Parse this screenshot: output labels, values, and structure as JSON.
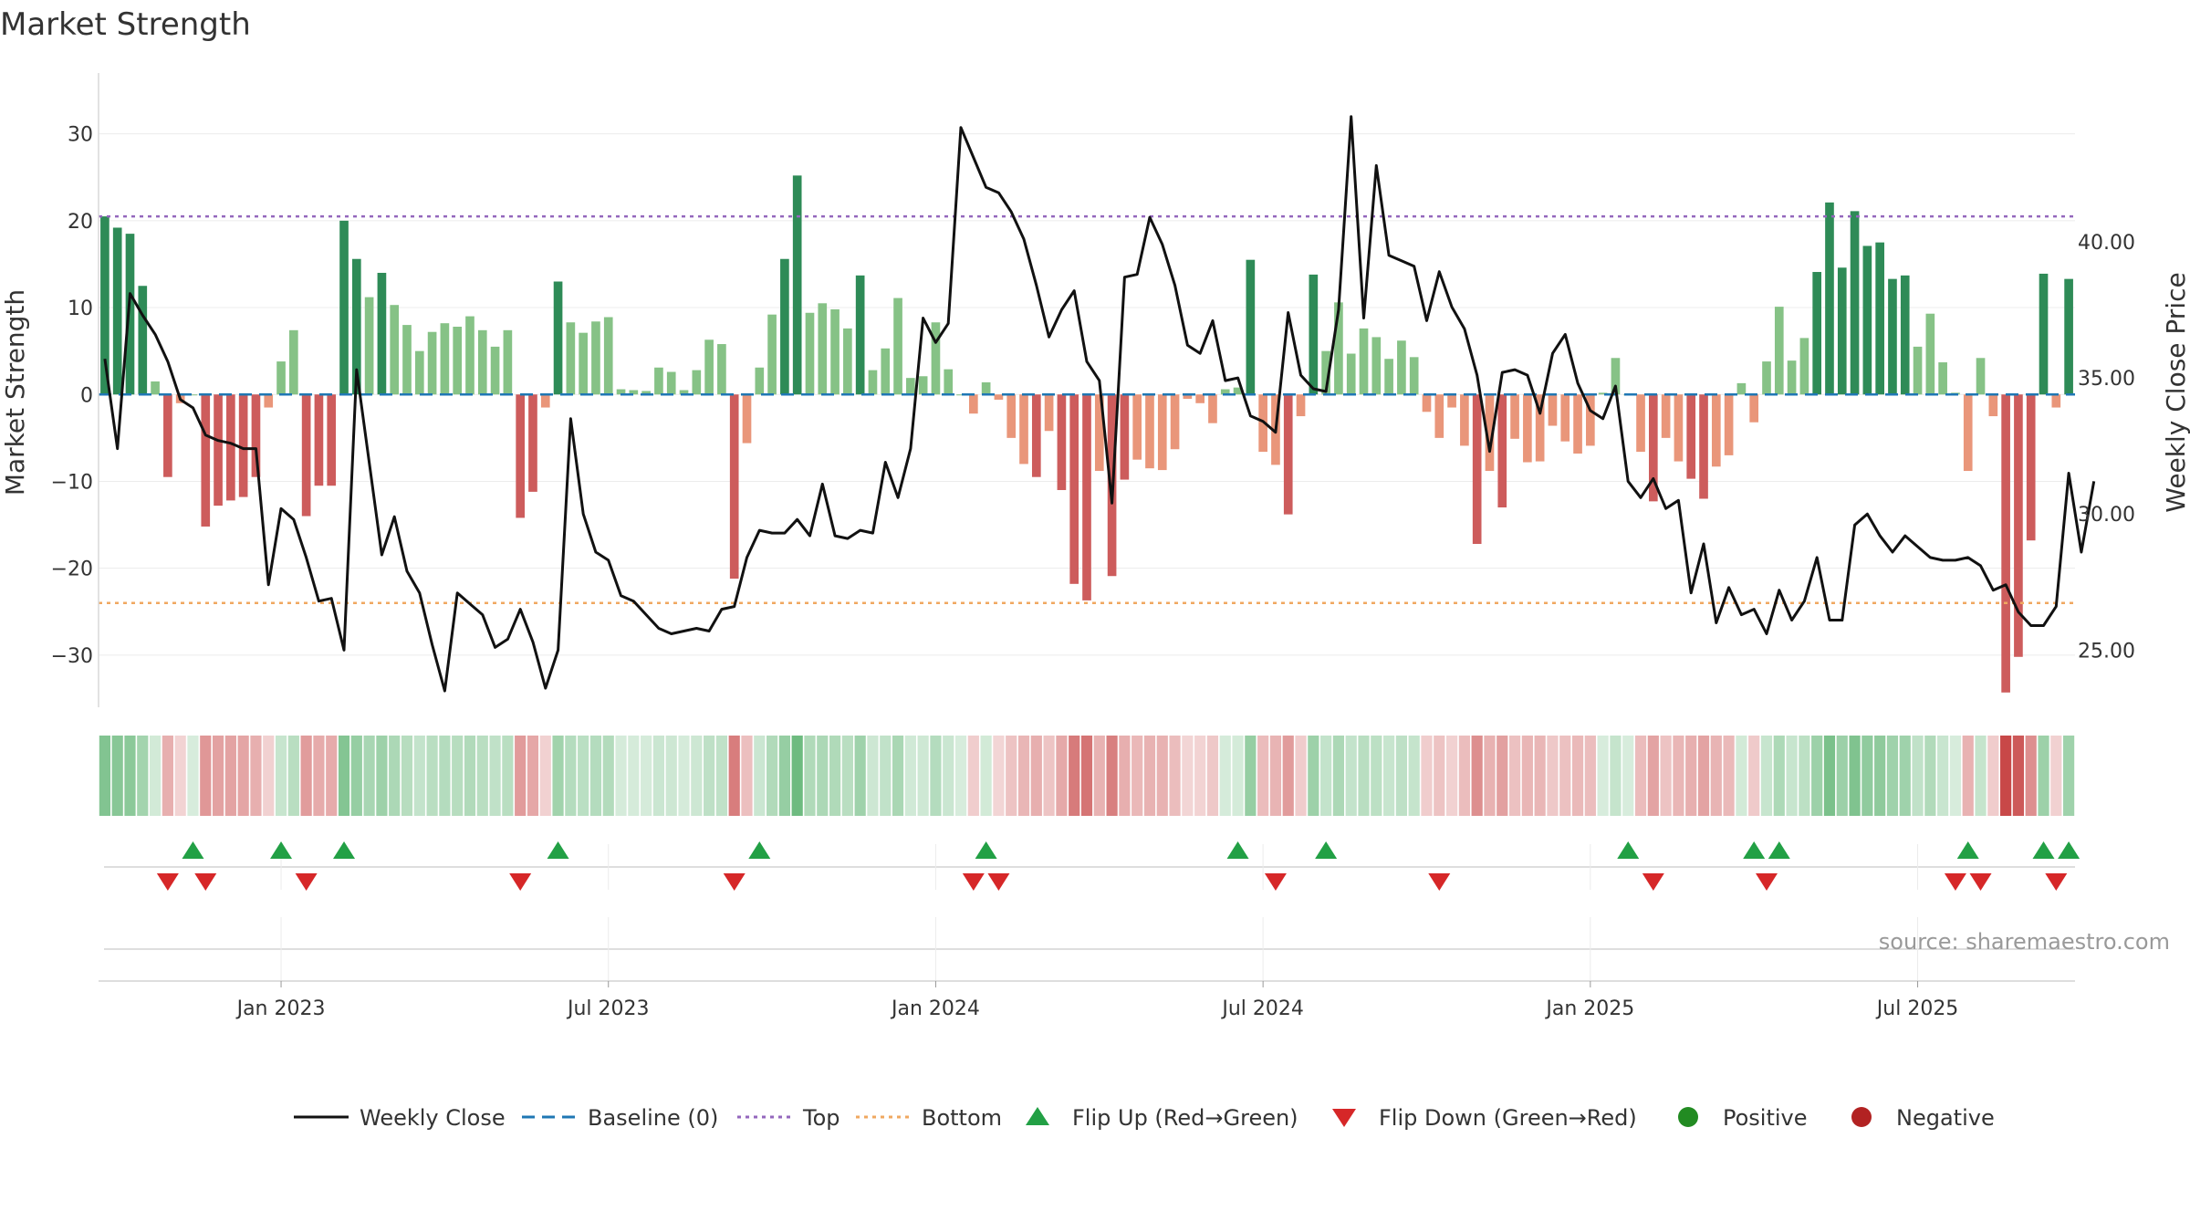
{
  "chart_data": {
    "type": "bar",
    "title": "Market Strength",
    "ylabel": "Market Strength",
    "y2label": "Weekly Close Price",
    "ylim": [
      -36,
      37
    ],
    "y2lim": [
      22.9,
      46.2
    ],
    "y_ticks": [
      30,
      20,
      10,
      0,
      -10,
      -20,
      -30
    ],
    "y_tick_labels": [
      "30",
      "20",
      "10",
      "0",
      "−10",
      "−20",
      "−30"
    ],
    "y2_ticks": [
      40,
      35,
      30,
      25
    ],
    "y2_tick_labels": [
      "40.00",
      "35.00",
      "30.00",
      "25.00"
    ],
    "top_line": 20.5,
    "bottom_line": -24,
    "grid": true,
    "x_tick_labels": [
      "Jan 2023",
      "Jul 2023",
      "Jan 2024",
      "Jul 2024",
      "Jan 2025",
      "Jul 2025"
    ],
    "x_tick_weeks": [
      14,
      40,
      66,
      92,
      118,
      144
    ],
    "weeks": 157,
    "strength": [
      20.5,
      19.2,
      18.5,
      12.5,
      1.5,
      -9.5,
      -1,
      0,
      -15.2,
      -12.8,
      -12.2,
      -11.8,
      -9.5,
      -1.5,
      3.8,
      7.4,
      -14,
      -10.5,
      -10.5,
      20,
      15.6,
      11.2,
      14,
      10.3,
      8,
      5,
      7.2,
      8.2,
      7.8,
      9,
      7.4,
      5.5,
      7.4,
      -14.2,
      -11.2,
      -1.5,
      13,
      8.3,
      7.1,
      8.4,
      8.9,
      0.6,
      0.5,
      0.4,
      3.1,
      2.6,
      0.5,
      2.8,
      6.3,
      5.8,
      -21.2,
      -5.6,
      3.1,
      9.2,
      15.6,
      25.2,
      9.4,
      10.5,
      9.8,
      7.6,
      13.7,
      2.8,
      5.3,
      11.1,
      1.9,
      2.1,
      8.3,
      2.9,
      0,
      -2.2,
      1.4,
      -0.6,
      -5,
      -8,
      -9.5,
      -4.2,
      -11,
      -21.8,
      -23.7,
      -8.8,
      -20.9,
      -9.8,
      -7.5,
      -8.5,
      -8.7,
      -6.3,
      -0.5,
      -1,
      -3.3,
      0.6,
      0.8,
      15.5,
      -6.6,
      -8.1,
      -13.8,
      -2.5,
      13.8,
      5,
      10.6,
      4.7,
      7.6,
      6.6,
      4.1,
      6.2,
      4.3,
      -2,
      -5,
      -1.5,
      -5.9,
      -17.2,
      -8.8,
      -13,
      -5.1,
      -7.8,
      -7.7,
      -3.6,
      -5.4,
      -6.8,
      -5.9,
      0.2,
      4.2,
      0,
      -6.6,
      -12.3,
      -5,
      -7.7,
      -9.7,
      -12,
      -8.3,
      -7,
      1.3,
      -3.2,
      3.8,
      10.1,
      3.9,
      6.5,
      14.1,
      22.1,
      14.6,
      21.1,
      17.1,
      17.5,
      13.3,
      13.7,
      5.5,
      9.3,
      3.7,
      0.2,
      -8.8,
      4.2,
      -2.5,
      -34.3,
      -30.2,
      -16.8,
      13.9,
      -1.5,
      13.3
    ],
    "price": [
      35.7,
      32.4,
      38.1,
      37.3,
      36.6,
      35.6,
      34.2,
      33.9,
      32.9,
      32.7,
      32.6,
      32.4,
      32.4,
      27.4,
      30.2,
      29.8,
      28.4,
      26.8,
      26.9,
      25,
      35.3,
      31.9,
      28.5,
      29.9,
      27.9,
      27.1,
      25.2,
      23.5,
      27.1,
      26.7,
      26.3,
      25.1,
      25.4,
      26.5,
      25.3,
      23.6,
      25,
      33.5,
      30,
      28.6,
      28.3,
      27,
      26.8,
      26.3,
      25.8,
      25.6,
      25.7,
      25.8,
      25.7,
      26.5,
      26.6,
      28.4,
      29.4,
      29.3,
      29.3,
      29.8,
      29.2,
      31.1,
      29.2,
      29.1,
      29.4,
      29.3,
      31.9,
      30.6,
      32.4,
      37.2,
      36.3,
      37,
      44.2,
      43.1,
      42,
      41.8,
      41.1,
      40.1,
      38.4,
      36.5,
      37.5,
      38.2,
      35.6,
      34.9,
      30.4,
      38.7,
      38.8,
      40.9,
      39.9,
      38.4,
      36.2,
      35.9,
      37.1,
      34.9,
      35,
      33.6,
      33.4,
      33,
      37.4,
      35.1,
      34.6,
      34.5,
      37.5,
      44.6,
      37.2,
      42.8,
      39.5,
      39.3,
      39.1,
      37.1,
      38.9,
      37.6,
      36.8,
      35.1,
      32.3,
      35.2,
      35.3,
      35.1,
      33.7,
      35.9,
      36.6,
      34.8,
      33.8,
      33.5,
      34.7,
      31.2,
      30.6,
      31.3,
      30.2,
      30.5,
      27.1,
      28.9,
      26,
      27.3,
      26.3,
      26.5,
      25.6,
      27.2,
      26.1,
      26.8,
      28.4,
      26.1,
      26.1,
      29.6,
      30,
      29.2,
      28.6,
      29.2,
      28.8,
      28.4,
      28.3,
      28.3,
      28.4,
      28.1,
      27.2,
      27.4,
      26.4,
      25.9,
      25.9,
      26.6,
      31.5,
      28.6,
      31.2
    ],
    "flip_up_weeks": [
      7,
      14,
      19,
      36,
      52,
      70,
      90,
      97,
      121,
      131,
      133,
      148,
      154,
      156
    ],
    "flip_down_weeks": [
      5,
      8,
      16,
      33,
      50,
      69,
      71,
      93,
      106,
      123,
      132,
      147,
      149,
      155
    ],
    "colors": {
      "strong_positive": "#2e8b57",
      "positive": "#86c286",
      "strong_negative": "#cd5c5c",
      "negative": "#e9967a",
      "price_line": "#111111",
      "baseline": "#1f77b4",
      "top_line": "#9467bd",
      "bottom_line": "#f0a860",
      "flip_up": "#22a045",
      "flip_down": "#d62728",
      "positive_dot": "#228b22",
      "negative_dot": "#b22222"
    },
    "watermark": "source: sharemaestro.com",
    "legend": [
      {
        "label": "Weekly Close",
        "kind": "line",
        "color": "#111111"
      },
      {
        "label": "Baseline (0)",
        "kind": "dash",
        "color": "#1f77b4"
      },
      {
        "label": "Top",
        "kind": "dot",
        "color": "#9467bd"
      },
      {
        "label": "Bottom",
        "kind": "dot",
        "color": "#f0a860"
      },
      {
        "label": "Flip Up (Red→Green)",
        "kind": "tri-up",
        "color": "#22a045"
      },
      {
        "label": "Flip Down (Green→Red)",
        "kind": "tri-down",
        "color": "#d62728"
      },
      {
        "label": "Positive",
        "kind": "circle",
        "color": "#228b22"
      },
      {
        "label": "Negative",
        "kind": "circle",
        "color": "#b22222"
      }
    ],
    "legend_placement": "bottom"
  }
}
